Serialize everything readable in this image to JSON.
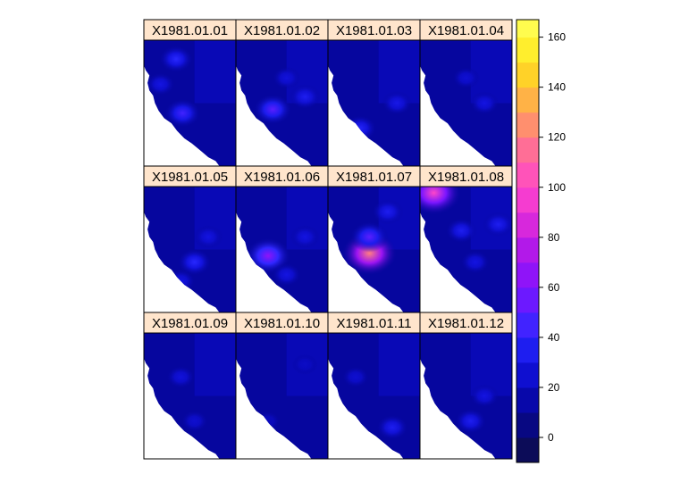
{
  "chart_data": {
    "type": "heatmap",
    "layout": {
      "rows": 3,
      "cols": 4
    },
    "panels": [
      {
        "title": "X1981.01.01",
        "hotspots": [
          [
            0.18,
            0.35,
            30
          ],
          [
            0.42,
            0.58,
            45
          ],
          [
            0.35,
            0.15,
            40
          ]
        ]
      },
      {
        "title": "X1981.01.02",
        "hotspots": [
          [
            0.4,
            0.55,
            50
          ],
          [
            0.75,
            0.45,
            35
          ],
          [
            0.55,
            0.3,
            28
          ]
        ]
      },
      {
        "title": "X1981.01.03",
        "hotspots": [
          [
            0.35,
            0.7,
            38
          ],
          [
            0.75,
            0.5,
            32
          ]
        ]
      },
      {
        "title": "X1981.01.04",
        "hotspots": [
          [
            0.7,
            0.5,
            30
          ],
          [
            0.5,
            0.3,
            26
          ]
        ]
      },
      {
        "title": "X1981.01.05",
        "hotspots": [
          [
            0.55,
            0.6,
            40
          ],
          [
            0.7,
            0.4,
            30
          ],
          [
            0.4,
            0.75,
            30
          ]
        ]
      },
      {
        "title": "X1981.01.06",
        "hotspots": [
          [
            0.35,
            0.55,
            65
          ],
          [
            0.75,
            0.4,
            30
          ],
          [
            0.55,
            0.7,
            30
          ]
        ]
      },
      {
        "title": "X1981.01.07",
        "hotspots": [
          [
            0.45,
            0.53,
            120
          ],
          [
            0.45,
            0.4,
            50
          ],
          [
            0.65,
            0.2,
            35
          ]
        ]
      },
      {
        "title": "X1981.01.08",
        "hotspots": [
          [
            0.15,
            0.05,
            100
          ],
          [
            0.45,
            0.35,
            35
          ],
          [
            0.85,
            0.3,
            35
          ],
          [
            0.6,
            0.6,
            30
          ]
        ]
      },
      {
        "title": "X1981.01.09",
        "hotspots": [
          [
            0.4,
            0.35,
            28
          ],
          [
            0.55,
            0.7,
            25
          ]
        ]
      },
      {
        "title": "X1981.01.10",
        "hotspots": [
          [
            0.35,
            0.7,
            20
          ],
          [
            0.75,
            0.25,
            22
          ]
        ]
      },
      {
        "title": "X1981.01.11",
        "hotspots": [
          [
            0.7,
            0.75,
            35
          ],
          [
            0.3,
            0.35,
            25
          ]
        ]
      },
      {
        "title": "X1981.01.12",
        "hotspots": [
          [
            0.55,
            0.7,
            35
          ],
          [
            0.7,
            0.5,
            30
          ]
        ]
      }
    ],
    "colorbar": {
      "range": [
        -10,
        167
      ],
      "ticks": [
        0,
        20,
        40,
        60,
        80,
        100,
        120,
        140,
        160
      ],
      "tick_labels": [
        "0",
        "20",
        "40",
        "60",
        "80",
        "100",
        "120",
        "140",
        "160"
      ],
      "step": 10
    },
    "colors": {
      "strip_bg": "#FFE5CC",
      "panel_border": "#000000",
      "ocean": "#ffffff"
    }
  }
}
